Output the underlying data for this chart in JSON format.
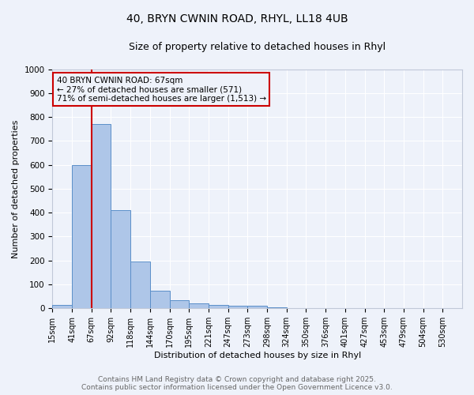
{
  "title_line1": "40, BRYN CWNIN ROAD, RHYL, LL18 4UB",
  "title_line2": "Size of property relative to detached houses in Rhyl",
  "xlabel": "Distribution of detached houses by size in Rhyl",
  "ylabel": "Number of detached properties",
  "bin_labels": [
    "15sqm",
    "41sqm",
    "67sqm",
    "92sqm",
    "118sqm",
    "144sqm",
    "170sqm",
    "195sqm",
    "221sqm",
    "247sqm",
    "273sqm",
    "298sqm",
    "324sqm",
    "350sqm",
    "376sqm",
    "401sqm",
    "427sqm",
    "453sqm",
    "479sqm",
    "504sqm",
    "530sqm"
  ],
  "bar_heights": [
    15,
    600,
    770,
    410,
    195,
    75,
    35,
    20,
    15,
    10,
    10,
    5,
    0,
    0,
    0,
    0,
    0,
    0,
    0,
    0,
    0
  ],
  "bar_color": "#aec6e8",
  "bar_edge_color": "#5b8fc9",
  "property_bin_index": 2,
  "red_line_color": "#cc0000",
  "annotation_text_line1": "40 BRYN CWNIN ROAD: 67sqm",
  "annotation_text_line2": "← 27% of detached houses are smaller (571)",
  "annotation_text_line3": "71% of semi-detached houses are larger (1,513) →",
  "annotation_box_color": "#cc0000",
  "ylim": [
    0,
    1000
  ],
  "background_color": "#eef2fa",
  "grid_color": "#ffffff",
  "footer_line1": "Contains HM Land Registry data © Crown copyright and database right 2025.",
  "footer_line2": "Contains public sector information licensed under the Open Government Licence v3.0.",
  "title_fontsize": 10,
  "subtitle_fontsize": 9,
  "axis_label_fontsize": 8,
  "tick_fontsize": 7,
  "annotation_fontsize": 7.5,
  "footer_fontsize": 6.5
}
